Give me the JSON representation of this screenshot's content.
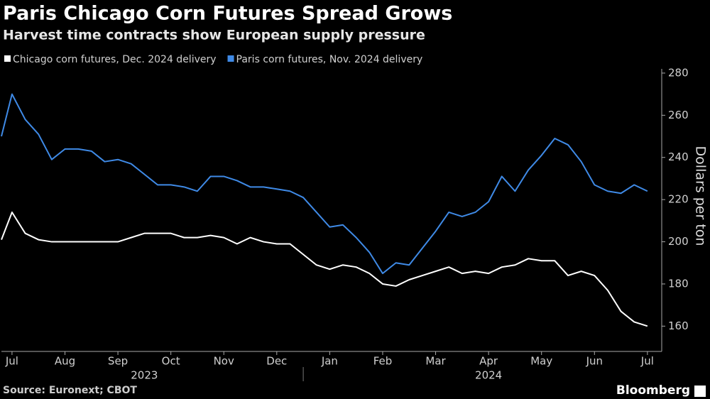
{
  "chart_data": {
    "type": "line",
    "title": "Paris Chicago Corn Futures Spread Grows",
    "subtitle": "Harvest time contracts show European supply pressure",
    "y_label": "Dollars per ton",
    "source": "Source: Euronext; CBOT",
    "brand": "Bloomberg",
    "x": [
      -0.2,
      0,
      0.25,
      0.5,
      0.75,
      1,
      1.25,
      1.5,
      1.75,
      2,
      2.25,
      2.5,
      2.75,
      3,
      3.25,
      3.5,
      3.75,
      4,
      4.25,
      4.5,
      4.75,
      5,
      5.25,
      5.5,
      5.75,
      6,
      6.25,
      6.5,
      6.75,
      7,
      7.25,
      7.5,
      7.75,
      8,
      8.25,
      8.5,
      8.75,
      9,
      9.25,
      9.5,
      9.75,
      10,
      10.25,
      10.5,
      10.75,
      11,
      11.25,
      11.5,
      11.75,
      12
    ],
    "series": [
      {
        "name": "Chicago corn futures, Dec. 2024 delivery",
        "color": "#ffffff",
        "values": [
          201,
          214,
          204,
          201,
          200,
          200,
          200,
          200,
          200,
          200,
          202,
          204,
          204,
          204,
          202,
          202,
          203,
          202,
          199,
          202,
          200,
          199,
          199,
          194,
          189,
          187,
          189,
          188,
          185,
          180,
          179,
          182,
          184,
          186,
          188,
          185,
          186,
          185,
          188,
          189,
          192,
          191,
          191,
          184,
          186,
          184,
          177,
          167,
          162,
          160
        ]
      },
      {
        "name": "Paris corn futures, Nov. 2024 delivery",
        "color": "#3f8ae6",
        "values": [
          250,
          270,
          258,
          251,
          239,
          244,
          244,
          243,
          238,
          239,
          237,
          232,
          227,
          227,
          226,
          224,
          231,
          231,
          229,
          226,
          226,
          225,
          224,
          221,
          214,
          207,
          208,
          202,
          195,
          185,
          190,
          189,
          197,
          205,
          214,
          212,
          214,
          219,
          231,
          224,
          234,
          241,
          249,
          246,
          238,
          227,
          224,
          223,
          227,
          224
        ]
      }
    ],
    "xlim": [
      -0.2,
      12.27
    ],
    "xticks": [
      {
        "value": 0,
        "label": "Jul"
      },
      {
        "value": 1,
        "label": "Aug"
      },
      {
        "value": 2,
        "label": "Sep"
      },
      {
        "value": 3,
        "label": "Oct"
      },
      {
        "value": 4,
        "label": "Nov"
      },
      {
        "value": 5,
        "label": "Dec"
      },
      {
        "value": 6,
        "label": "Jan"
      },
      {
        "value": 7,
        "label": "Feb"
      },
      {
        "value": 8,
        "label": "Mar"
      },
      {
        "value": 9,
        "label": "Apr"
      },
      {
        "value": 10,
        "label": "May"
      },
      {
        "value": 11,
        "label": "Jun"
      },
      {
        "value": 12,
        "label": "Jul"
      }
    ],
    "year_labels": [
      "2023",
      "2024"
    ],
    "ylim": [
      148,
      282
    ],
    "yticks": [
      160,
      180,
      200,
      220,
      240,
      260,
      280
    ]
  }
}
